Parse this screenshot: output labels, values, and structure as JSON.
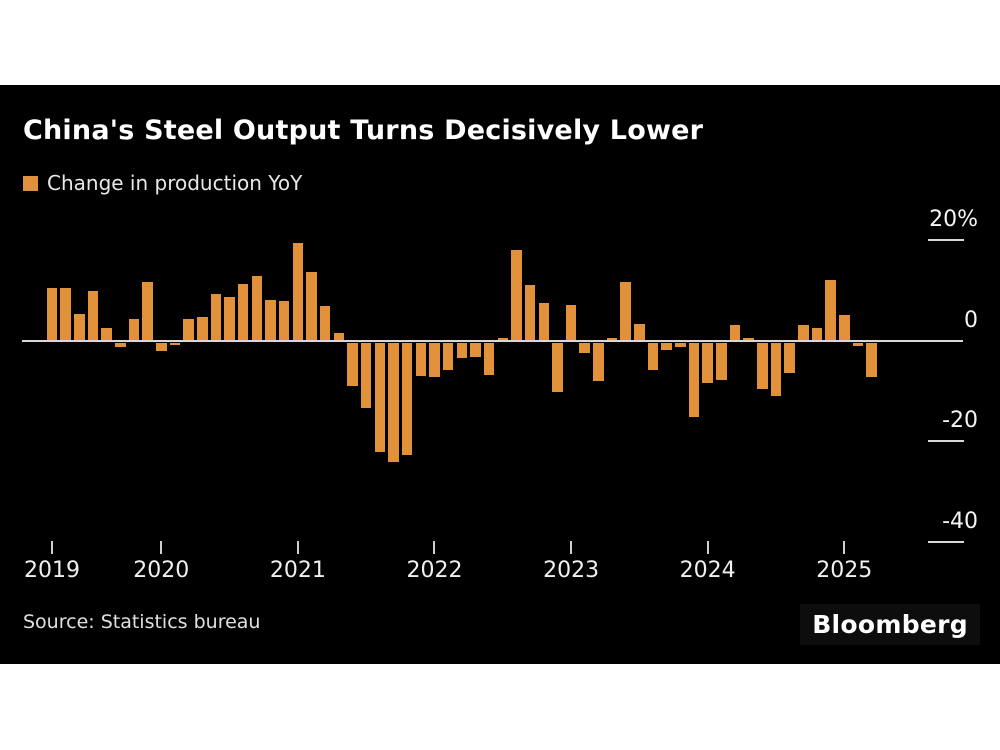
{
  "header": {
    "title": "China's Steel Output Turns Decisively Lower",
    "legend_label": "Change in production YoY"
  },
  "footer": {
    "source": "Source: Statistics bureau",
    "brand": "Bloomberg"
  },
  "colors": {
    "bar": "#e09139",
    "panel_background": "#000000",
    "page_background": "#ffffff",
    "axis_line": "#d8d8d8",
    "text": "#ffffff"
  },
  "chart_data": {
    "type": "bar",
    "title": "China's Steel Output Turns Decisively Lower",
    "series_name": "Change in production YoY",
    "unit": "%",
    "grid": false,
    "legend_position": "top-left",
    "ylim": [
      -45,
      22
    ],
    "y_ticks": [
      20,
      0,
      -20,
      -40
    ],
    "y_tick_labels": [
      "20%",
      "0",
      "-20",
      "-40"
    ],
    "x_tick_labels": [
      "2019",
      "2020",
      "2021",
      "2022",
      "2023",
      "2024",
      "2025"
    ],
    "x_tick_bar_indices": [
      0,
      8,
      18,
      28,
      38,
      48,
      58
    ],
    "values": [
      10.5,
      10.5,
      5.2,
      9.8,
      2.4,
      -0.8,
      4.2,
      11.7,
      -1.7,
      -0.5,
      4.3,
      4.6,
      9.3,
      8.6,
      11.3,
      12.9,
      8.1,
      7.8,
      19.3,
      13.6,
      6.8,
      1.5,
      -8.6,
      -13.1,
      -21.7,
      -23.7,
      -22.4,
      -6.6,
      -6.8,
      -5.4,
      -3.0,
      -2.8,
      -6.5,
      0.5,
      17.9,
      11.1,
      7.4,
      -9.8,
      7.0,
      -2.0,
      -7.6,
      0.4,
      11.6,
      3.3,
      -5.4,
      -1.5,
      -0.9,
      -14.9,
      -8.1,
      -7.4,
      3.0,
      0.5,
      -9.2,
      -10.7,
      -6.1,
      3.0,
      2.5,
      12.0,
      5.0,
      -0.6,
      -6.8
    ]
  }
}
